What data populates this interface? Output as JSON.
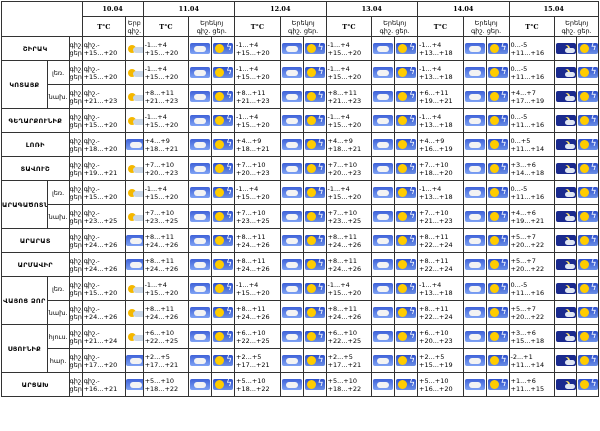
{
  "dates": [
    "10.04",
    "11.04",
    "12.04",
    "13.04",
    "14.04",
    "15.04"
  ],
  "header": {
    "tc": "T°C",
    "first_day_sub": "Երբ գիշ.",
    "night": "գիշ.",
    "day": "ցեր.",
    "day_sub": "Երեկոյ"
  },
  "regions": [
    {
      "name": "ՇԻՐԱԿ",
      "sub": "",
      "d0_top": "գիշ.-",
      "d0_bot": "+15...+20",
      "d0_icon": "pcl",
      "t": [
        "-1...+4|+15...+20",
        "-1...+4|+15...+20",
        "-1...+4|+15...+20",
        "-1...+4|+13...+18",
        "0...-5|+11...+16"
      ],
      "icons": [
        [
          "sky",
          "lt"
        ],
        [
          "sky",
          "lt"
        ],
        [
          "sky",
          "lt"
        ],
        [
          "sky",
          "lt"
        ],
        [
          "moon",
          "lt"
        ]
      ]
    },
    {
      "name": "ԿՈՏԱՅՔ",
      "sub": "լեռ.",
      "d0_top": "գիշ.-",
      "d0_bot": "+15...+20",
      "d0_icon": "pcl",
      "t": [
        "-1...+4|+15...+20",
        "-1...+4|+15...+20",
        "-1...+4|+15...+20",
        "-1...+4|+13...+18",
        "0...-5|+11...+16"
      ],
      "icons": [
        [
          "sky",
          "lt"
        ],
        [
          "sky",
          "lt"
        ],
        [
          "sky",
          "lt"
        ],
        [
          "sky",
          "lt"
        ],
        [
          "moon",
          "lt"
        ]
      ]
    },
    {
      "name": "",
      "sub": "նախ.",
      "d0_top": "գիշ.-",
      "d0_bot": "+21...+23",
      "d0_icon": "pcl",
      "t": [
        "+8...+11|+21...+23",
        "+8...+11|+21...+23",
        "+8...+11|+21...+23",
        "+6...+11|+19...+21",
        "+4...+7|+17...+19"
      ],
      "icons": [
        [
          "sky",
          "lt"
        ],
        [
          "sky",
          "lt"
        ],
        [
          "sky",
          "lt"
        ],
        [
          "sky",
          "lt"
        ],
        [
          "moon",
          "lt"
        ]
      ]
    },
    {
      "name": "ԳԵՂԱՐՔՈՒՆԻՔ",
      "sub": "",
      "d0_top": "գիշ.-",
      "d0_bot": "+15...+20",
      "d0_icon": "pcl",
      "t": [
        "-1...+4|+15...+20",
        "-1...+4|+15...+20",
        "-1...+4|+15...+20",
        "-1...+4|+13...+18",
        "0...-5|+11...+16"
      ],
      "icons": [
        [
          "sky",
          "lt"
        ],
        [
          "sky",
          "lt"
        ],
        [
          "sky",
          "lt"
        ],
        [
          "sky",
          "lt"
        ],
        [
          "moon",
          "lt"
        ]
      ]
    },
    {
      "name": "ԼՈՌԻ",
      "sub": "",
      "d0_top": "գիշ.-",
      "d0_bot": "+18...+20",
      "d0_icon": "sky",
      "t": [
        "+4...+9|+18...+21",
        "+4...+9|+18...+21",
        "+4...+9|+18...+21",
        "+4...+9|+16...+19",
        "0...+5|+11...+14"
      ],
      "icons": [
        [
          "sky",
          "lt"
        ],
        [
          "sky",
          "lt"
        ],
        [
          "sky",
          "lt"
        ],
        [
          "sky",
          "lt"
        ],
        [
          "moon",
          "lt"
        ]
      ]
    },
    {
      "name": "ՏԱՎՈՒՇ",
      "sub": "",
      "d0_top": "գիշ.-",
      "d0_bot": "+19...+21",
      "d0_icon": "pcl",
      "t": [
        "+7...+10|+20...+23",
        "+7...+10|+20...+23",
        "+7...+10|+20...+23",
        "+7...+10|+18...+20",
        "+3...+6|+14...+18"
      ],
      "icons": [
        [
          "sky",
          "lt"
        ],
        [
          "sky",
          "lt"
        ],
        [
          "sky",
          "lt"
        ],
        [
          "sky",
          "lt"
        ],
        [
          "moon",
          "lt"
        ]
      ]
    },
    {
      "name": "ԱՐԱԳԱԾՈՏՆ",
      "sub": "լեռ.",
      "d0_top": "գիշ.-",
      "d0_bot": "+15...+20",
      "d0_icon": "pcl",
      "t": [
        "-1...+4|+15...+20",
        "-1...+4|+15...+20",
        "-1...+4|+15...+20",
        "-1...+4|+13...+18",
        "0...-5|+11...+16"
      ],
      "icons": [
        [
          "sky",
          "lt"
        ],
        [
          "sky",
          "lt"
        ],
        [
          "sky",
          "lt"
        ],
        [
          "sky",
          "lt"
        ],
        [
          "moon",
          "lt"
        ]
      ]
    },
    {
      "name": "",
      "sub": "նախ.",
      "d0_top": "գիշ.-",
      "d0_bot": "+23...+25",
      "d0_icon": "pcl",
      "t": [
        "+7...+10|+23...+25",
        "+7...+10|+23...+25",
        "+7...+10|+23...+25",
        "+7...+10|+21...+23",
        "+4...+6|+19...+21"
      ],
      "icons": [
        [
          "sky",
          "lt"
        ],
        [
          "sky",
          "lt"
        ],
        [
          "sky",
          "lt"
        ],
        [
          "sky",
          "lt"
        ],
        [
          "moon",
          "lt"
        ]
      ]
    },
    {
      "name": "ԱՐԱՐԱՏ",
      "sub": "",
      "d0_top": "գիշ.-",
      "d0_bot": "+24...+26",
      "d0_icon": "sky",
      "t": [
        "+8...+11|+24...+26",
        "+8...+11|+24...+26",
        "+8...+11|+24...+26",
        "+8...+11|+22...+24",
        "+5...+7|+20...+22"
      ],
      "icons": [
        [
          "sky",
          "lt"
        ],
        [
          "sky",
          "lt"
        ],
        [
          "sky",
          "lt"
        ],
        [
          "sky",
          "lt"
        ],
        [
          "moon",
          "lt"
        ]
      ]
    },
    {
      "name": "ԱՐՄԱՎԻՐ",
      "sub": "",
      "d0_top": "գիշ.-",
      "d0_bot": "+24...+26",
      "d0_icon": "sky",
      "t": [
        "+8...+11|+24...+26",
        "+8...+11|+24...+26",
        "+8...+11|+24...+26",
        "+8...+11|+22...+24",
        "+5...+7|+20...+22"
      ],
      "icons": [
        [
          "sky",
          "lt"
        ],
        [
          "sky",
          "lt"
        ],
        [
          "sky",
          "lt"
        ],
        [
          "sky",
          "lt"
        ],
        [
          "moon",
          "lt"
        ]
      ]
    },
    {
      "name": "ՎԱՅՈՑ ՁՈՐ",
      "sub": "լեռ.",
      "d0_top": "գիշ.-",
      "d0_bot": "+15...+20",
      "d0_icon": "pcl",
      "t": [
        "-1...+4|+15...+20",
        "-1...+4|+15...+20",
        "-1...+4|+15...+20",
        "-1...+4|+13...+18",
        "0...-5|+11...+16"
      ],
      "icons": [
        [
          "sky",
          "lt"
        ],
        [
          "sky",
          "lt"
        ],
        [
          "sky",
          "lt"
        ],
        [
          "sky",
          "lt"
        ],
        [
          "moon",
          "lt"
        ]
      ]
    },
    {
      "name": "",
      "sub": "նախ.",
      "d0_top": "գիշ.-",
      "d0_bot": "+24...+26",
      "d0_icon": "pcl",
      "t": [
        "+8...+11|+24...+26",
        "+8...+11|+24...+26",
        "+8...+11|+24...+26",
        "+8...+11|+22...+24",
        "+5...+7|+20...+22"
      ],
      "icons": [
        [
          "sky",
          "lt"
        ],
        [
          "sky",
          "lt"
        ],
        [
          "sky",
          "lt"
        ],
        [
          "sky",
          "lt"
        ],
        [
          "moon",
          "lt"
        ]
      ]
    },
    {
      "name": "ՍՅՈՒՆԻՔ",
      "sub": "հյուս.",
      "d0_top": "գիշ.-",
      "d0_bot": "+21...+24",
      "d0_icon": "pcl",
      "t": [
        "+6...+10|+22...+25",
        "+6...+10|+22...+25",
        "+6...+10|+22...+25",
        "+6...+10|+20...+23",
        "+3...+6|+15...+18"
      ],
      "icons": [
        [
          "sky",
          "lt"
        ],
        [
          "sky",
          "lt"
        ],
        [
          "sky",
          "lt"
        ],
        [
          "sky",
          "lt"
        ],
        [
          "moon",
          "lt"
        ]
      ]
    },
    {
      "name": "",
      "sub": "հար.",
      "d0_top": "գիշ.-",
      "d0_bot": "+17...+20",
      "d0_icon": "sky",
      "t": [
        "+2...+5|+17...+21",
        "+2...+5|+17...+21",
        "+2...+5|+17...+21",
        "+2...+5|+15...+19",
        "-2...+1|+11...+14"
      ],
      "icons": [
        [
          "sky",
          "lt"
        ],
        [
          "sky",
          "lt"
        ],
        [
          "sky",
          "lt"
        ],
        [
          "sky",
          "lt"
        ],
        [
          "moon",
          "lt"
        ]
      ]
    },
    {
      "name": "ԱՐՑԱԽ",
      "sub": "",
      "d0_top": "գիշ.-",
      "d0_bot": "+16...+21",
      "d0_icon": "sky",
      "t": [
        "+5...+10|+18...+22",
        "+5...+10|+18...+22",
        "+5...+10|+18...+22",
        "+5...+10|+16...+20",
        "+1...+6|+11...+15"
      ],
      "icons": [
        [
          "sky",
          "lt"
        ],
        [
          "sky",
          "lt"
        ],
        [
          "sky",
          "lt"
        ],
        [
          "sky",
          "lt"
        ],
        [
          "moon",
          "lt"
        ]
      ]
    }
  ]
}
